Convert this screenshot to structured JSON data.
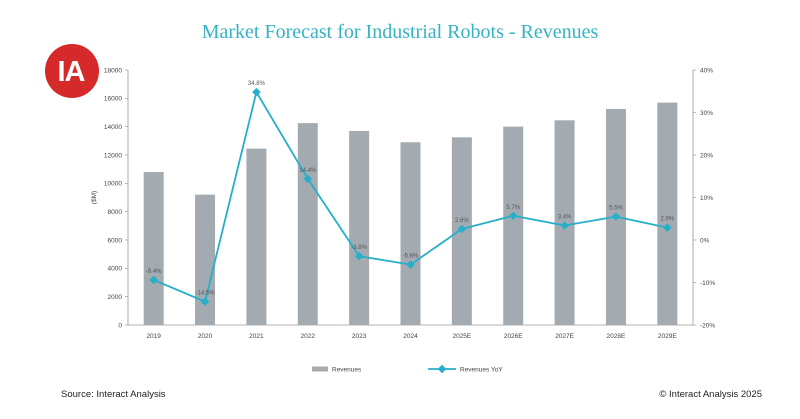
{
  "logo": {
    "text": "IA",
    "color": "#d62a2a"
  },
  "footer": {
    "source": "Source: Interact Analysis",
    "copyright": "© Interact Analysis 2025"
  },
  "chart_data": {
    "type": "bar",
    "title": "Market Forecast for Industrial Robots - Revenues",
    "categories": [
      "2019",
      "2020",
      "2021",
      "2022",
      "2023",
      "2024",
      "2025E",
      "2026E",
      "2027E",
      "2028E",
      "2029E"
    ],
    "series": [
      {
        "name": "Revenues",
        "type": "bar",
        "axis": "left",
        "color": "#a3abb1",
        "values": [
          10800,
          9200,
          12450,
          14250,
          13700,
          12900,
          13250,
          14000,
          14450,
          15250,
          15700
        ]
      },
      {
        "name": "Revenues YoY",
        "type": "line",
        "axis": "right",
        "color": "#25afc8",
        "values": [
          -9.4,
          -14.5,
          34.8,
          14.4,
          -3.8,
          -5.8,
          2.6,
          5.7,
          3.4,
          5.5,
          2.9
        ],
        "labels": [
          "-9.4%",
          "-14.5%",
          "34.8%",
          "14.4%",
          "-3.8%",
          "-5.8%",
          "2.6%",
          "5.7%",
          "3.4%",
          "5.5%",
          "2.9%"
        ]
      }
    ],
    "ylabel": "($M)",
    "ylim": [
      0,
      18000
    ],
    "yticks": [
      "0",
      "2000",
      "4000",
      "6000",
      "8000",
      "10000",
      "12000",
      "14000",
      "16000",
      "18000"
    ],
    "y2lim": [
      -20,
      40
    ],
    "y2ticks": [
      "-20%",
      "-10%",
      "0%",
      "10%",
      "20%",
      "30%",
      "40%"
    ],
    "legend_position": "bottom",
    "grid": false
  }
}
